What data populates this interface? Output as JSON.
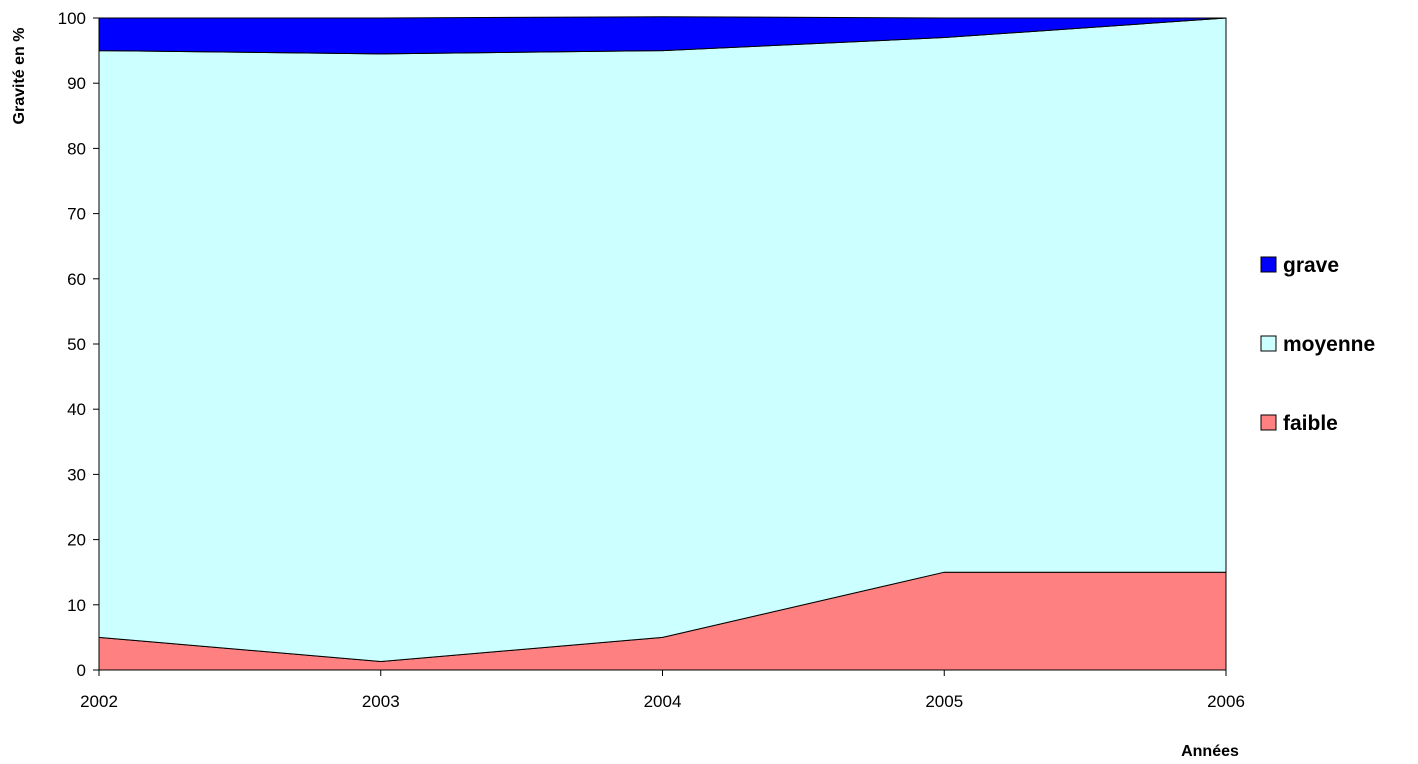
{
  "chart_data": {
    "type": "area",
    "stacked": true,
    "x": [
      2002,
      2003,
      2004,
      2005,
      2006
    ],
    "series": [
      {
        "name": "faible",
        "color": "#ff8080",
        "values": [
          5,
          1.3,
          5,
          15,
          15
        ]
      },
      {
        "name": "moyenne",
        "color": "#ccffff",
        "values": [
          90,
          93.2,
          90,
          82,
          85
        ]
      },
      {
        "name": "grave",
        "color": "#0000ff",
        "values": [
          5,
          5.5,
          5.2,
          3,
          0
        ]
      }
    ],
    "legend_order": [
      "grave",
      "moyenne",
      "faible"
    ],
    "ylabel": "Gravité en %",
    "xlabel": "Années",
    "ylim": [
      0,
      100
    ],
    "yticks": [
      0,
      10,
      20,
      30,
      40,
      50,
      60,
      70,
      80,
      90,
      100
    ],
    "xlim": [
      2002,
      2006
    ],
    "grid": false,
    "legend_position": "right"
  }
}
